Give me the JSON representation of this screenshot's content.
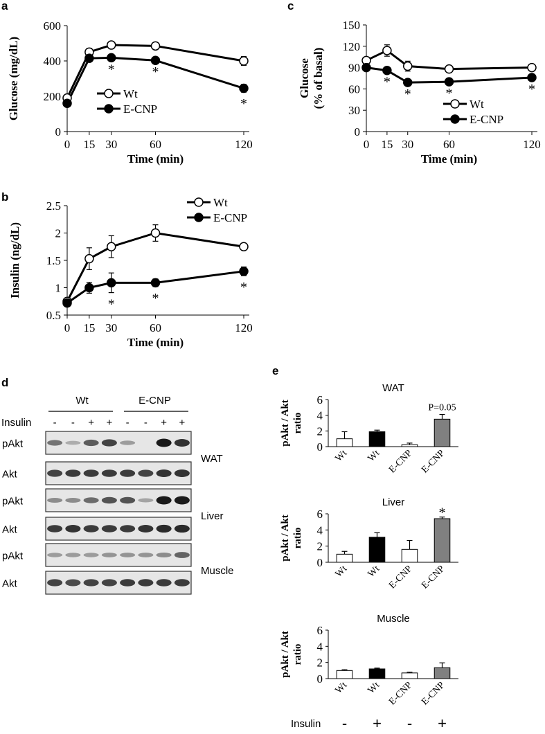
{
  "panel_labels": {
    "a": "a",
    "b": "b",
    "c": "c",
    "d": "d",
    "e": "e"
  },
  "chart_data": [
    {
      "id": "a",
      "type": "line",
      "xlabel": "Time (min)",
      "ylabel": "Glucose (mg/dL)",
      "x": [
        0,
        15,
        30,
        60,
        120
      ],
      "x_ticks": [
        "0",
        "15",
        "30",
        "60",
        "120"
      ],
      "ylim": [
        0,
        600
      ],
      "y_ticks": [
        "0",
        "200",
        "400",
        "600"
      ],
      "y_tick_values": [
        0,
        200,
        400,
        600
      ],
      "series": [
        {
          "name": "Wt",
          "marker": "open-circle",
          "values": [
            190,
            450,
            490,
            485,
            400
          ],
          "errors": [
            0,
            22,
            0,
            0,
            25
          ]
        },
        {
          "name": "E-CNP",
          "marker": "filled-circle",
          "values": [
            160,
            415,
            418,
            403,
            245
          ],
          "errors": [
            0,
            0,
            0,
            0,
            22
          ]
        }
      ],
      "significance": [
        {
          "x": 30,
          "label": "*"
        },
        {
          "x": 60,
          "label": "*"
        },
        {
          "x": 120,
          "label": "*"
        }
      ],
      "legend_position": "center-right"
    },
    {
      "id": "b",
      "type": "line",
      "xlabel": "Time (min)",
      "ylabel": "Insulin (ng/dL)",
      "x": [
        0,
        15,
        30,
        60,
        120
      ],
      "x_ticks": [
        "0",
        "15",
        "30",
        "60",
        "120"
      ],
      "ylim": [
        0.5,
        2.5
      ],
      "y_ticks": [
        "0.5",
        "1",
        "1.5",
        "2",
        "2.5"
      ],
      "y_tick_values": [
        0.5,
        1,
        1.5,
        2,
        2.5
      ],
      "series": [
        {
          "name": "Wt",
          "marker": "open-circle",
          "values": [
            0.75,
            1.53,
            1.75,
            2.0,
            1.75
          ],
          "errors": [
            0.05,
            0.2,
            0.2,
            0.15,
            0.05
          ]
        },
        {
          "name": "E-CNP",
          "marker": "filled-circle",
          "values": [
            0.72,
            1.0,
            1.09,
            1.09,
            1.3
          ],
          "errors": [
            0.05,
            0.1,
            0.18,
            0.07,
            0.08
          ]
        }
      ],
      "significance": [
        {
          "x": 30,
          "label": "*"
        },
        {
          "x": 60,
          "label": "*"
        },
        {
          "x": 120,
          "label": "*"
        }
      ],
      "legend_position": "top-right"
    },
    {
      "id": "c",
      "type": "line",
      "xlabel": "Time (min)",
      "ylabel_lines": [
        "Glucose",
        "(% of basal)"
      ],
      "x": [
        0,
        15,
        30,
        60,
        120
      ],
      "x_ticks": [
        "0",
        "15",
        "30",
        "60",
        "120"
      ],
      "ylim": [
        0,
        150
      ],
      "y_ticks": [
        "0",
        "30",
        "60",
        "90",
        "120",
        "150"
      ],
      "y_tick_values": [
        0,
        30,
        60,
        90,
        120,
        150
      ],
      "series": [
        {
          "name": "Wt",
          "marker": "open-circle",
          "values": [
            100,
            114,
            92,
            88,
            90
          ],
          "errors": [
            0,
            8,
            7,
            0,
            0
          ]
        },
        {
          "name": "E-CNP",
          "marker": "filled-circle",
          "values": [
            90,
            86,
            69,
            70,
            76
          ],
          "errors": [
            0,
            0,
            0,
            0,
            0
          ]
        }
      ],
      "significance": [
        {
          "x": 15,
          "label": "*"
        },
        {
          "x": 30,
          "label": "*"
        },
        {
          "x": 60,
          "label": "*"
        },
        {
          "x": 120,
          "label": "*"
        }
      ],
      "legend_position": "center-right"
    },
    {
      "id": "e-wat",
      "type": "bar",
      "title": "WAT",
      "ylabel_lines": [
        "pAkt / Akt",
        "ratio"
      ],
      "categories": [
        "Wt",
        "Wt",
        "E-CNP",
        "E-CNP"
      ],
      "values": [
        1.0,
        1.9,
        0.25,
        3.5
      ],
      "errors": [
        0.9,
        0.2,
        0.2,
        0.6
      ],
      "fills": [
        "#ffffff",
        "#000000",
        "#ffffff",
        "#808080"
      ],
      "ylim": [
        0,
        6
      ],
      "y_ticks": [
        "0",
        "2",
        "4",
        "6"
      ],
      "y_tick_values": [
        0,
        2,
        4,
        6
      ],
      "annotation": {
        "bar": 3,
        "text": "P=0.05"
      }
    },
    {
      "id": "e-liver",
      "type": "bar",
      "title": "Liver",
      "ylabel_lines": [
        "pAkt / Akt",
        "ratio"
      ],
      "categories": [
        "Wt",
        "Wt",
        "E-CNP",
        "E-CNP"
      ],
      "values": [
        1.0,
        3.1,
        1.6,
        5.4
      ],
      "errors": [
        0.35,
        0.55,
        1.1,
        0.2
      ],
      "fills": [
        "#ffffff",
        "#000000",
        "#ffffff",
        "#808080"
      ],
      "ylim": [
        0,
        6
      ],
      "y_ticks": [
        "0",
        "2",
        "4",
        "6"
      ],
      "y_tick_values": [
        0,
        2,
        4,
        6
      ],
      "annotation": {
        "bar": 3,
        "text": "*"
      }
    },
    {
      "id": "e-muscle",
      "type": "bar",
      "title": "Muscle",
      "ylabel_lines": [
        "pAkt / Akt",
        "ratio"
      ],
      "categories": [
        "Wt",
        "Wt",
        "E-CNP",
        "E-CNP"
      ],
      "values": [
        1.0,
        1.2,
        0.7,
        1.35
      ],
      "errors": [
        0.1,
        0.1,
        0.1,
        0.6
      ],
      "fills": [
        "#ffffff",
        "#000000",
        "#ffffff",
        "#808080"
      ],
      "ylim": [
        0,
        6
      ],
      "y_ticks": [
        "0",
        "2",
        "4",
        "6"
      ],
      "y_tick_values": [
        0,
        2,
        4,
        6
      ]
    }
  ],
  "insulin_row_e": {
    "label": "Insulin",
    "signs": [
      "-",
      "+",
      "-",
      "+"
    ]
  },
  "western_blot": {
    "groups": [
      "Wt",
      "E-CNP"
    ],
    "insulin_label": "Insulin",
    "insulin_signs": [
      "-",
      "-",
      "+",
      "+",
      "-",
      "-",
      "+",
      "+"
    ],
    "blots": [
      {
        "label": "pAkt",
        "tissue": "WAT",
        "intensities": [
          0.45,
          0.1,
          0.6,
          0.75,
          0.2,
          0.0,
          1.0,
          0.85
        ]
      },
      {
        "label": "Akt",
        "tissue": "",
        "intensities": [
          0.75,
          0.8,
          0.8,
          0.8,
          0.8,
          0.75,
          0.85,
          0.85
        ]
      },
      {
        "label": "pAkt",
        "tissue": "Liver",
        "intensities": [
          0.3,
          0.3,
          0.5,
          0.65,
          0.65,
          0.15,
          1.0,
          1.0
        ]
      },
      {
        "label": "Akt",
        "tissue": "",
        "intensities": [
          0.8,
          0.85,
          0.8,
          0.8,
          0.8,
          0.85,
          0.9,
          0.9
        ]
      },
      {
        "label": "pAkt",
        "tissue": "Muscle",
        "intensities": [
          0.2,
          0.2,
          0.2,
          0.25,
          0.25,
          0.25,
          0.3,
          0.55
        ]
      },
      {
        "label": "Akt",
        "tissue": "",
        "intensities": [
          0.75,
          0.7,
          0.75,
          0.75,
          0.8,
          0.8,
          0.8,
          0.8
        ]
      }
    ]
  },
  "colors": {
    "axis": "#000000",
    "open_marker": "#ffffff",
    "filled_marker": "#000000",
    "blot_background": "#e6e6e6",
    "band": "#1a1a1a"
  }
}
